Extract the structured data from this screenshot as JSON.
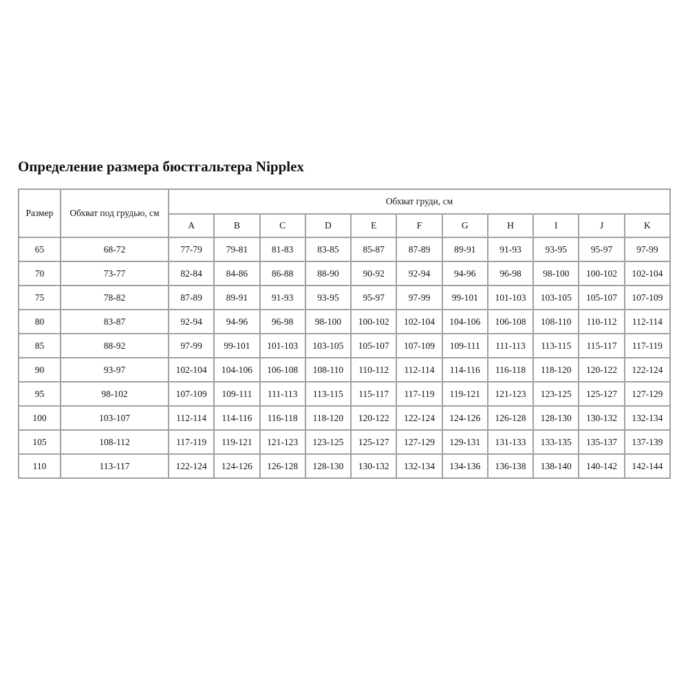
{
  "title": "Определение размера бюстгальтера Nipplex",
  "headers": {
    "size": "Размер",
    "underbust": "Обхват под грудью, см",
    "bust": "Обхват груди, см",
    "cups": [
      "A",
      "B",
      "C",
      "D",
      "E",
      "F",
      "G",
      "H",
      "I",
      "J",
      "K"
    ]
  },
  "rows": [
    {
      "size": "65",
      "underbust": "68-72",
      "cups": [
        "77-79",
        "79-81",
        "81-83",
        "83-85",
        "85-87",
        "87-89",
        "89-91",
        "91-93",
        "93-95",
        "95-97",
        "97-99"
      ]
    },
    {
      "size": "70",
      "underbust": "73-77",
      "cups": [
        "82-84",
        "84-86",
        "86-88",
        "88-90",
        "90-92",
        "92-94",
        "94-96",
        "96-98",
        "98-100",
        "100-102",
        "102-104"
      ]
    },
    {
      "size": "75",
      "underbust": "78-82",
      "cups": [
        "87-89",
        "89-91",
        "91-93",
        "93-95",
        "95-97",
        "97-99",
        "99-101",
        "101-103",
        "103-105",
        "105-107",
        "107-109"
      ]
    },
    {
      "size": "80",
      "underbust": "83-87",
      "cups": [
        "92-94",
        "94-96",
        "96-98",
        "98-100",
        "100-102",
        "102-104",
        "104-106",
        "106-108",
        "108-110",
        "110-112",
        "112-114"
      ]
    },
    {
      "size": "85",
      "underbust": "88-92",
      "cups": [
        "97-99",
        "99-101",
        "101-103",
        "103-105",
        "105-107",
        "107-109",
        "109-111",
        "111-113",
        "113-115",
        "115-117",
        "117-119"
      ]
    },
    {
      "size": "90",
      "underbust": "93-97",
      "cups": [
        "102-104",
        "104-106",
        "106-108",
        "108-110",
        "110-112",
        "112-114",
        "114-116",
        "116-118",
        "118-120",
        "120-122",
        "122-124"
      ]
    },
    {
      "size": "95",
      "underbust": "98-102",
      "cups": [
        "107-109",
        "109-111",
        "111-113",
        "113-115",
        "115-117",
        "117-119",
        "119-121",
        "121-123",
        "123-125",
        "125-127",
        "127-129"
      ]
    },
    {
      "size": "100",
      "underbust": "103-107",
      "cups": [
        "112-114",
        "114-116",
        "116-118",
        "118-120",
        "120-122",
        "122-124",
        "124-126",
        "126-128",
        "128-130",
        "130-132",
        "132-134"
      ]
    },
    {
      "size": "105",
      "underbust": "108-112",
      "cups": [
        "117-119",
        "119-121",
        "121-123",
        "123-125",
        "125-127",
        "127-129",
        "129-131",
        "131-133",
        "133-135",
        "135-137",
        "137-139"
      ]
    },
    {
      "size": "110",
      "underbust": "113-117",
      "cups": [
        "122-124",
        "124-126",
        "126-128",
        "128-130",
        "130-132",
        "132-134",
        "134-136",
        "136-138",
        "138-140",
        "140-142",
        "142-144"
      ]
    }
  ]
}
